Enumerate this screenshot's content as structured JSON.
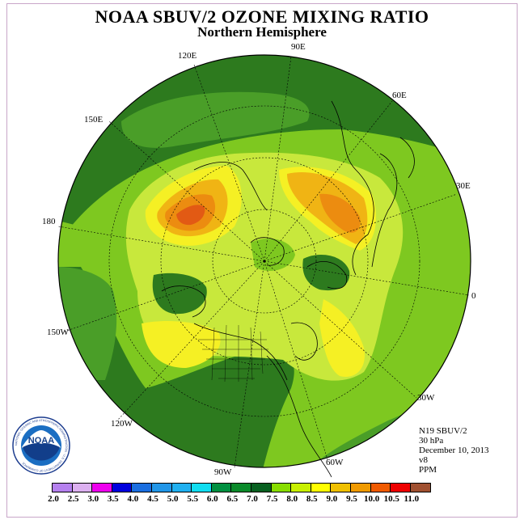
{
  "title": "NOAA SBUV/2 OZONE MIXING RATIO",
  "subtitle": "Northern Hemisphere",
  "longitude_labels": {
    "lon_90e": "90E",
    "lon_60e": "60E",
    "lon_30e": "30E",
    "lon_0": "0",
    "lon_30w": "30W",
    "lon_60w": "60W",
    "lon_90w": "90W",
    "lon_120w": "120W",
    "lon_150w": "150W",
    "lon_180": "180",
    "lon_150e": "150E",
    "lon_120e": "120E"
  },
  "info": {
    "satellite": "N19 SBUV/2",
    "level": "30 hPa",
    "date": "December 10, 2013",
    "version": "v8",
    "units": "PPM"
  },
  "logo": {
    "text": "NOAA",
    "ring_text": "NATIONAL OCEANIC AND ATMOSPHERIC ADMINISTRATION · U.S. DEPARTMENT OF COMMERCE"
  },
  "legend": {
    "ticks": [
      "2.0",
      "2.5",
      "3.0",
      "3.5",
      "4.0",
      "4.5",
      "5.0",
      "5.5",
      "6.0",
      "6.5",
      "7.0",
      "7.5",
      "8.0",
      "8.5",
      "9.0",
      "9.5",
      "10.0",
      "10.5",
      "11.0"
    ],
    "colors": [
      "#b580ee",
      "#dcb0f0",
      "#ee00ee",
      "#0000dd",
      "#1a6ee0",
      "#2196e8",
      "#20b0f0",
      "#10ddf0",
      "#009040",
      "#0a8a2a",
      "#086020",
      "#88dd00",
      "#c8f000",
      "#ffff00",
      "#f0c000",
      "#f09a00",
      "#f05a00",
      "#ee0000",
      "#a05030"
    ]
  },
  "colors": {
    "ocean_dark": "#2d7a1e",
    "mid_green": "#4a9e28",
    "light_green": "#7ec820",
    "yellow_green": "#c8e83c",
    "yellow": "#f5f024",
    "orange_light": "#f0b414",
    "orange": "#ec8c10",
    "red_orange": "#e25a14"
  }
}
